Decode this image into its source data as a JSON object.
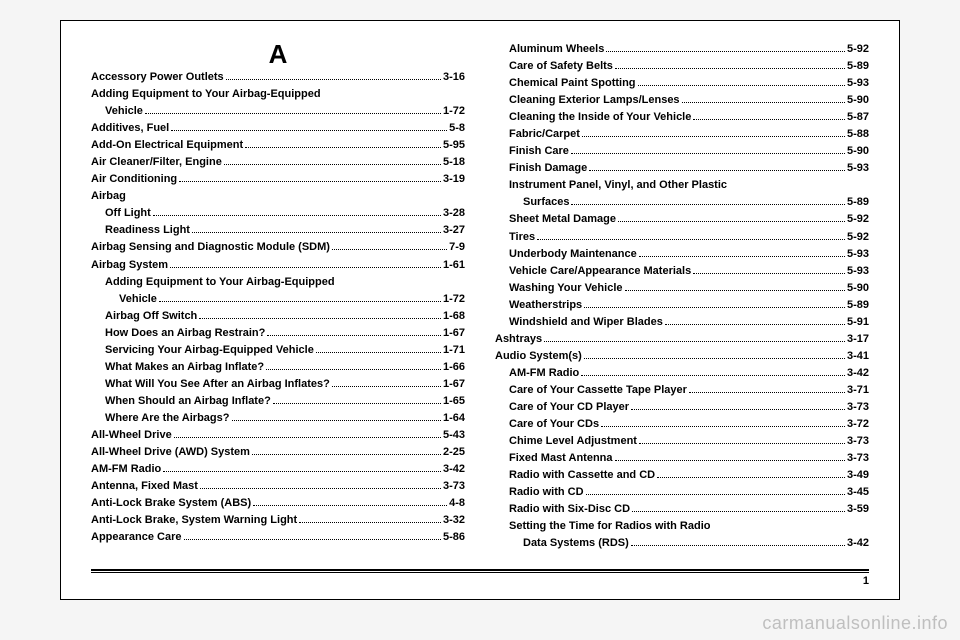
{
  "section_letter": "A",
  "page_number": "1",
  "watermark": "carmanualsonline.info",
  "left": [
    {
      "t": "Accessory Power Outlets",
      "p": "3-16",
      "l": 0
    },
    {
      "t": "Adding Equipment to Your Airbag-Equipped",
      "p": "",
      "l": 0
    },
    {
      "t": "Vehicle",
      "p": "1-72",
      "l": 1
    },
    {
      "t": "Additives, Fuel",
      "p": "5-8",
      "l": 0
    },
    {
      "t": "Add-On Electrical Equipment",
      "p": "5-95",
      "l": 0
    },
    {
      "t": "Air Cleaner/Filter, Engine",
      "p": "5-18",
      "l": 0
    },
    {
      "t": "Air Conditioning",
      "p": "3-19",
      "l": 0
    },
    {
      "t": "Airbag",
      "p": "",
      "l": 0
    },
    {
      "t": "Off Light",
      "p": "3-28",
      "l": 1
    },
    {
      "t": "Readiness Light",
      "p": "3-27",
      "l": 1
    },
    {
      "t": "Airbag Sensing and Diagnostic Module (SDM)",
      "p": "7-9",
      "l": 0
    },
    {
      "t": "Airbag System",
      "p": "1-61",
      "l": 0
    },
    {
      "t": "Adding Equipment to Your Airbag-Equipped",
      "p": "",
      "l": 1
    },
    {
      "t": "Vehicle",
      "p": "1-72",
      "l": 2
    },
    {
      "t": "Airbag Off Switch",
      "p": "1-68",
      "l": 1
    },
    {
      "t": "How Does an Airbag Restrain?",
      "p": "1-67",
      "l": 1
    },
    {
      "t": "Servicing Your Airbag-Equipped Vehicle",
      "p": "1-71",
      "l": 1
    },
    {
      "t": "What Makes an Airbag Inflate?",
      "p": "1-66",
      "l": 1
    },
    {
      "t": "What Will You See After an Airbag Inflates?",
      "p": "1-67",
      "l": 1
    },
    {
      "t": "When Should an Airbag Inflate?",
      "p": "1-65",
      "l": 1
    },
    {
      "t": "Where Are the Airbags?",
      "p": "1-64",
      "l": 1
    },
    {
      "t": "All-Wheel Drive",
      "p": "5-43",
      "l": 0
    },
    {
      "t": "All-Wheel Drive (AWD) System",
      "p": "2-25",
      "l": 0
    },
    {
      "t": "AM-FM Radio",
      "p": "3-42",
      "l": 0
    },
    {
      "t": "Antenna, Fixed Mast",
      "p": "3-73",
      "l": 0
    },
    {
      "t": "Anti-Lock Brake System (ABS)",
      "p": "4-8",
      "l": 0
    },
    {
      "t": "Anti-Lock Brake, System Warning Light",
      "p": "3-32",
      "l": 0
    },
    {
      "t": "Appearance Care",
      "p": "5-86",
      "l": 0
    }
  ],
  "right": [
    {
      "t": "Aluminum Wheels",
      "p": "5-92",
      "l": 1
    },
    {
      "t": "Care of Safety Belts",
      "p": "5-89",
      "l": 1
    },
    {
      "t": "Chemical Paint Spotting",
      "p": "5-93",
      "l": 1
    },
    {
      "t": "Cleaning Exterior Lamps/Lenses",
      "p": "5-90",
      "l": 1
    },
    {
      "t": "Cleaning the Inside of Your Vehicle",
      "p": "5-87",
      "l": 1
    },
    {
      "t": "Fabric/Carpet",
      "p": "5-88",
      "l": 1
    },
    {
      "t": "Finish Care",
      "p": "5-90",
      "l": 1
    },
    {
      "t": "Finish Damage",
      "p": "5-93",
      "l": 1
    },
    {
      "t": "Instrument Panel, Vinyl, and Other Plastic",
      "p": "",
      "l": 1
    },
    {
      "t": "Surfaces",
      "p": "5-89",
      "l": 2
    },
    {
      "t": "Sheet Metal Damage",
      "p": "5-92",
      "l": 1
    },
    {
      "t": "Tires",
      "p": "5-92",
      "l": 1
    },
    {
      "t": "Underbody Maintenance",
      "p": "5-93",
      "l": 1
    },
    {
      "t": "Vehicle Care/Appearance Materials",
      "p": "5-93",
      "l": 1
    },
    {
      "t": "Washing Your Vehicle",
      "p": "5-90",
      "l": 1
    },
    {
      "t": "Weatherstrips",
      "p": "5-89",
      "l": 1
    },
    {
      "t": "Windshield and Wiper Blades",
      "p": "5-91",
      "l": 1
    },
    {
      "t": "Ashtrays",
      "p": "3-17",
      "l": 0
    },
    {
      "t": "Audio System(s)",
      "p": "3-41",
      "l": 0
    },
    {
      "t": "AM-FM Radio",
      "p": "3-42",
      "l": 1
    },
    {
      "t": "Care of Your Cassette Tape Player",
      "p": "3-71",
      "l": 1
    },
    {
      "t": "Care of Your CD Player",
      "p": "3-73",
      "l": 1
    },
    {
      "t": "Care of Your CDs",
      "p": "3-72",
      "l": 1
    },
    {
      "t": "Chime Level Adjustment",
      "p": "3-73",
      "l": 1
    },
    {
      "t": "Fixed Mast Antenna",
      "p": "3-73",
      "l": 1
    },
    {
      "t": "Radio with Cassette and CD",
      "p": "3-49",
      "l": 1
    },
    {
      "t": "Radio with CD",
      "p": "3-45",
      "l": 1
    },
    {
      "t": "Radio with Six-Disc CD",
      "p": "3-59",
      "l": 1
    },
    {
      "t": "Setting the Time for Radios with Radio",
      "p": "",
      "l": 1
    },
    {
      "t": "Data Systems (RDS)",
      "p": "3-42",
      "l": 2
    }
  ]
}
